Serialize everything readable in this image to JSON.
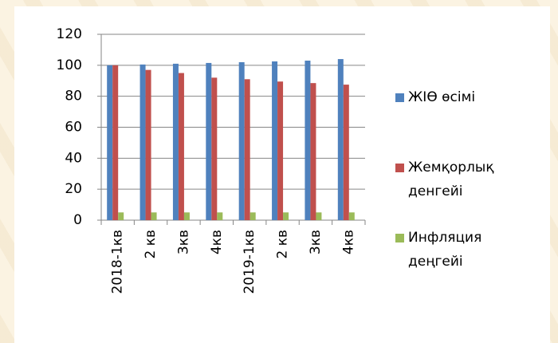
{
  "chart_data": {
    "type": "bar",
    "categories": [
      "2018-1кв",
      "2 кв",
      "3кв",
      "4кв",
      "2019-1кв",
      "2 кв",
      "3кв",
      "4кв"
    ],
    "series": [
      {
        "name": "ЖІӨ өсімі",
        "color": "#4f81bd",
        "values": [
          100,
          100.5,
          101,
          101.5,
          102,
          102.5,
          103,
          104
        ]
      },
      {
        "name": "Жемқорлық денгейі",
        "color": "#c0504d",
        "values": [
          100,
          97,
          95,
          92,
          91,
          89.5,
          88.5,
          87.5
        ]
      },
      {
        "name": "Инфляция деңгейі",
        "color": "#9bbb59",
        "values": [
          5,
          5,
          5,
          5,
          5,
          5,
          5,
          5
        ]
      }
    ],
    "ylim": [
      0,
      120
    ],
    "yticks": [
      0,
      20,
      40,
      60,
      80,
      100,
      120
    ],
    "grid": true,
    "legend": "right"
  }
}
